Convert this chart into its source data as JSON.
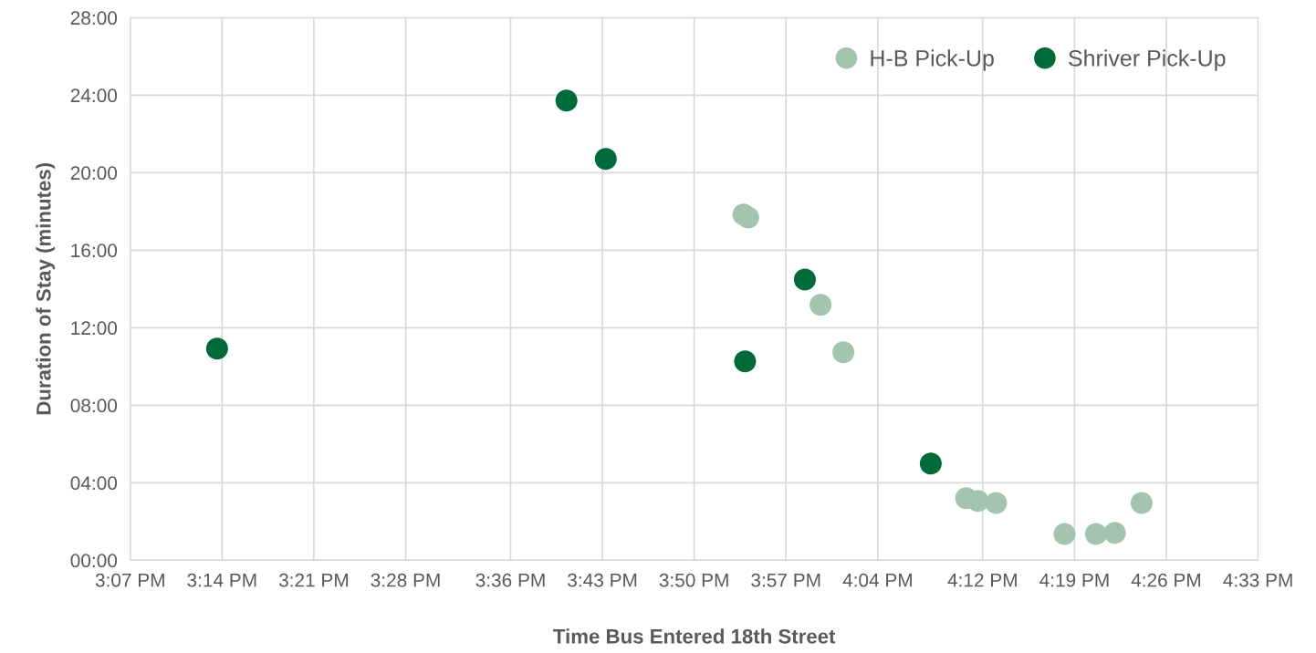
{
  "chart_data": {
    "type": "scatter",
    "xlabel": "Time Bus Entered 18th Street",
    "ylabel": "Duration of Stay (minutes)",
    "series": [
      {
        "name": "H-B Pick-Up",
        "color": "#a3c4ae",
        "x": [
          15.896,
          15.902,
          15.994,
          16.023,
          16.179,
          16.194,
          16.217,
          16.304,
          16.344,
          16.368,
          16.402
        ],
        "values": [
          17.84,
          17.69,
          13.18,
          10.73,
          3.2,
          3.06,
          2.96,
          1.36,
          1.36,
          1.41,
          2.96
        ]
      },
      {
        "name": "Shriver Pick-Up",
        "color": "#006b3a",
        "x": [
          15.227,
          15.671,
          15.721,
          15.898,
          15.974,
          16.134
        ],
        "values": [
          10.92,
          23.72,
          20.71,
          10.26,
          14.49,
          4.99
        ]
      }
    ],
    "xlim": [
      15.1167,
      16.55
    ],
    "xticks": [
      {
        "value": 15.1167,
        "label": "3:07 PM"
      },
      {
        "value": 15.2333,
        "label": "3:14 PM"
      },
      {
        "value": 15.35,
        "label": "3:21 PM"
      },
      {
        "value": 15.4667,
        "label": "3:28 PM"
      },
      {
        "value": 15.6,
        "label": "3:36 PM"
      },
      {
        "value": 15.7167,
        "label": "3:43 PM"
      },
      {
        "value": 15.8333,
        "label": "3:50 PM"
      },
      {
        "value": 15.95,
        "label": "3:57 PM"
      },
      {
        "value": 16.0667,
        "label": "4:04 PM"
      },
      {
        "value": 16.2,
        "label": "4:12 PM"
      },
      {
        "value": 16.3167,
        "label": "4:19 PM"
      },
      {
        "value": 16.4333,
        "label": "4:26 PM"
      },
      {
        "value": 16.55,
        "label": "4:33 PM"
      }
    ],
    "ylim": [
      0,
      28
    ],
    "yticks": [
      {
        "value": 0,
        "label": "00:00"
      },
      {
        "value": 4,
        "label": "04:00"
      },
      {
        "value": 8,
        "label": "08:00"
      },
      {
        "value": 12,
        "label": "12:00"
      },
      {
        "value": 16,
        "label": "16:00"
      },
      {
        "value": 20,
        "label": "20:00"
      },
      {
        "value": 24,
        "label": "24:00"
      },
      {
        "value": 28,
        "label": "28:00"
      }
    ],
    "grid": true,
    "legend": "top right",
    "marker": "circle"
  }
}
